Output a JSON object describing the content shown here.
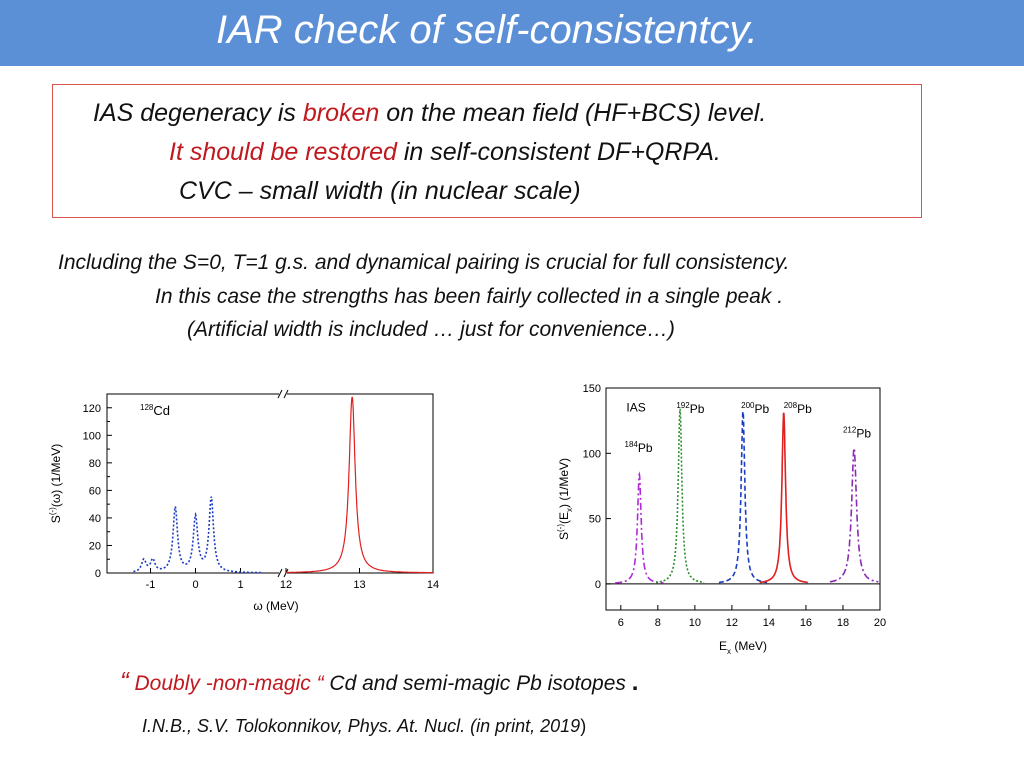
{
  "slide": {
    "title": "IAR check of self-consistentcy.",
    "box": {
      "l1_a": "IAS degeneracy is ",
      "l1_b": "broken",
      "l1_c": " on the mean field (HF+BCS) level.",
      "l2_a": "It should be  restored",
      "l2_b": " in self-consistent  DF+QRPA.",
      "l3": "CVC – small width (in nuclear scale)"
    },
    "mid": {
      "l1": "Including the  S=0, T=1  g.s.  and dynamical pairing is crucial  for full consistency.",
      "l2": "In this case the strengths has been fairly collected  in a single peak .",
      "l3": "(Artificial width is included  … just for convenience…)"
    },
    "footer": {
      "q_open": "“",
      "q_text": " Doubly -non-magic “",
      "rest": " Cd and semi-magic  Pb isotopes ",
      "dot": ".",
      "cite": "I.N.B., S.V. Tolokonnikov, Phys. At. Nucl. (in print, 2019",
      "cite_close": ")"
    },
    "colors": {
      "title_bar": "#5b8fd6",
      "red": "#c0191f",
      "blue": "#4d7fc6"
    }
  },
  "chart_data": [
    {
      "type": "line",
      "title": "",
      "annotation": "128Cd",
      "annotation_mass": "128",
      "annotation_element": "Cd",
      "xlabel": "ω (MeV)",
      "ylabel": "S(-)(ω) (1/MeV)",
      "ylabel_parts": {
        "pre": "S",
        "sup": "(-)",
        "mid": "(ω) (1/MeV)"
      },
      "ylim": [
        0,
        130
      ],
      "yticks": [
        0,
        20,
        40,
        60,
        80,
        100,
        120
      ],
      "axis_break": true,
      "xticks_left": [
        "-1",
        "0",
        "1"
      ],
      "xticks_right": [
        "12",
        "13",
        "14"
      ],
      "xlim_left": [
        -1.5,
        1.7
      ],
      "xlim_right": [
        12,
        14
      ],
      "grid": false,
      "series": [
        {
          "style": "dotted",
          "color": "#1a3cc4",
          "segment": "left",
          "peaks": [
            {
              "x": -1.15,
              "height": 9,
              "width": 0.06
            },
            {
              "x": -0.95,
              "height": 9,
              "width": 0.06
            },
            {
              "x": -0.45,
              "height": 47,
              "width": 0.06
            },
            {
              "x": 0.0,
              "height": 40,
              "width": 0.06
            },
            {
              "x": 0.35,
              "height": 54,
              "width": 0.06
            }
          ]
        },
        {
          "style": "solid",
          "color": "#e02020",
          "segment": "right",
          "peaks": [
            {
              "x": 12.9,
              "height": 128,
              "width": 0.05
            }
          ]
        }
      ]
    },
    {
      "type": "line",
      "title": "",
      "xlabel": "Ex (MeV)",
      "xlabel_parts": {
        "pre": "E",
        "sub": "x",
        "post": " (MeV)"
      },
      "ylabel": "S(-)(Ex) (1/MeV)",
      "ylabel_parts": {
        "pre": "S",
        "sup": "(-)",
        "mid": "(E",
        "sub": "x",
        "post": ") (1/MeV)"
      },
      "xlim": [
        5.2,
        20
      ],
      "ylim": [
        -20,
        150
      ],
      "xticks": [
        6,
        8,
        10,
        12,
        14,
        16,
        18,
        20
      ],
      "yticks": [
        0,
        50,
        100,
        150
      ],
      "grid": false,
      "annotations": [
        {
          "text": "IAS",
          "x": 6.3,
          "y": 132,
          "mass": "",
          "element": "IAS"
        },
        {
          "text": "184Pb",
          "x": 6.2,
          "y": 101,
          "mass": "184",
          "element": "Pb"
        },
        {
          "text": "192Pb",
          "x": 9.0,
          "y": 131,
          "mass": "192",
          "element": "Pb"
        },
        {
          "text": "200Pb",
          "x": 12.5,
          "y": 131,
          "mass": "200",
          "element": "Pb"
        },
        {
          "text": "208Pb",
          "x": 14.8,
          "y": 131,
          "mass": "208",
          "element": "Pb"
        },
        {
          "text": "212Pb",
          "x": 18.0,
          "y": 112,
          "mass": "212",
          "element": "Pb"
        }
      ],
      "series": [
        {
          "name": "184Pb",
          "style": "dashdot",
          "color": "#b02ad6",
          "peaks": [
            {
              "x": 7.0,
              "height": 84,
              "width": 0.12
            }
          ]
        },
        {
          "name": "192Pb",
          "style": "dotted",
          "color": "#2e8b2e",
          "peaks": [
            {
              "x": 9.2,
              "height": 134,
              "width": 0.12
            }
          ]
        },
        {
          "name": "200Pb",
          "style": "dashed",
          "color": "#1a3cc4",
          "peaks": [
            {
              "x": 12.6,
              "height": 132,
              "width": 0.12
            }
          ]
        },
        {
          "name": "208Pb",
          "style": "solid",
          "color": "#e02020",
          "peaks": [
            {
              "x": 14.8,
              "height": 131,
              "width": 0.12
            }
          ]
        },
        {
          "name": "212Pb",
          "style": "dashdot",
          "color": "#8a2ab6",
          "peaks": [
            {
              "x": 18.6,
              "height": 104,
              "width": 0.16
            }
          ]
        }
      ]
    }
  ]
}
